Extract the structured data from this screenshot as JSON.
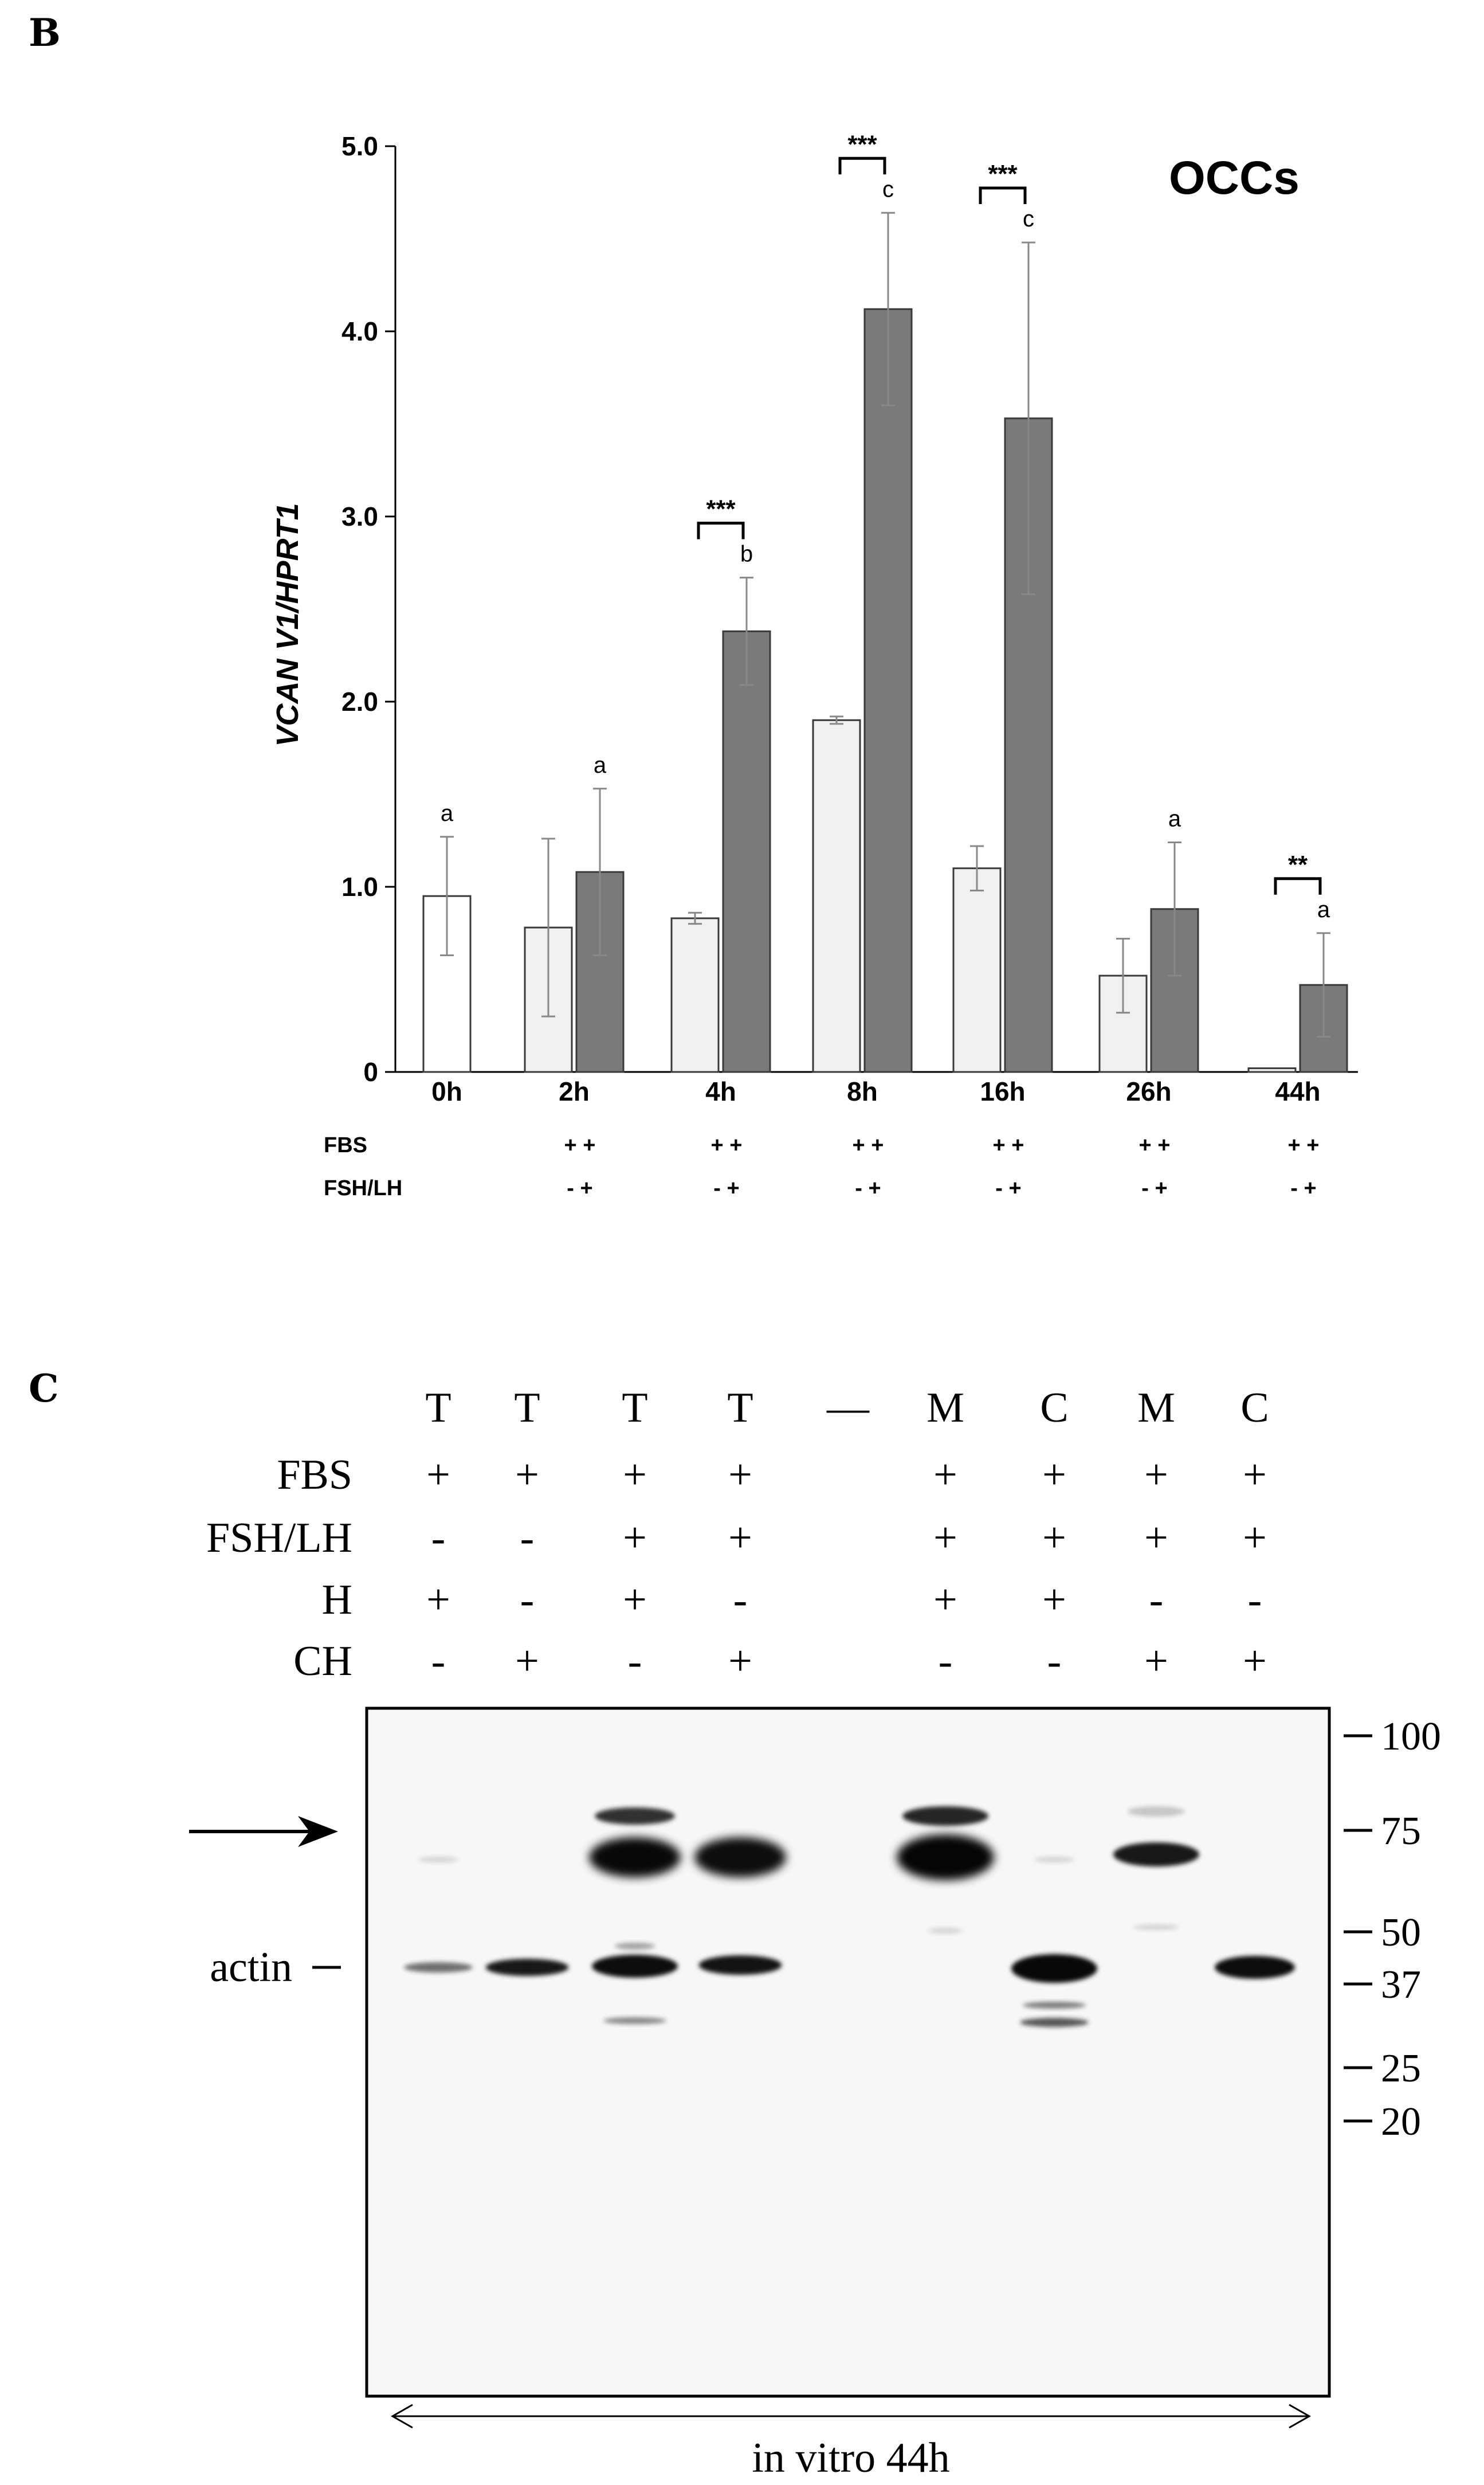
{
  "panel_b": {
    "letter": "B",
    "chart_data": {
      "type": "bar",
      "title": "OCCs",
      "ylabel": "VCAN V1/HPRT1",
      "xlabel": "",
      "ylim": [
        0,
        5.0
      ],
      "yticks": [
        "0",
        "1.0",
        "2.0",
        "3.0",
        "4.0",
        "5.0"
      ],
      "ytick_values": [
        0,
        1,
        2,
        3,
        4,
        5
      ],
      "grid": false,
      "categories": [
        "0h",
        "2h",
        "4h",
        "8h",
        "16h",
        "26h",
        "44h"
      ],
      "series": [
        {
          "values": [
            0.95,
            0.78,
            0.83,
            1.9,
            1.1,
            0.52,
            0.02
          ],
          "errors": [
            0.32,
            0.48,
            0.03,
            0.02,
            0.12,
            0.2,
            0.0
          ],
          "color": "#f0f0f0"
        },
        {
          "values": [
            null,
            1.08,
            2.38,
            4.12,
            3.53,
            0.88,
            0.47
          ],
          "errors": [
            null,
            0.45,
            0.29,
            0.52,
            0.95,
            0.36,
            0.28
          ],
          "color": "#7a7a7a"
        }
      ],
      "first_bar_color": "#ffffff",
      "letters": [
        {
          "category": "0h",
          "series": 0,
          "text": "a"
        },
        {
          "category": "2h",
          "series": 1,
          "text": "a"
        },
        {
          "category": "4h",
          "series": 1,
          "text": "b"
        },
        {
          "category": "8h",
          "series": 1,
          "text": "c"
        },
        {
          "category": "16h",
          "series": 1,
          "text": "c"
        },
        {
          "category": "26h",
          "series": 1,
          "text": "a"
        },
        {
          "category": "44h",
          "series": 1,
          "text": "a"
        }
      ],
      "significance": [
        {
          "category": "4h",
          "stars": "***"
        },
        {
          "category": "8h",
          "stars": "***"
        },
        {
          "category": "16h",
          "stars": "***"
        },
        {
          "category": "44h",
          "stars": "**"
        }
      ],
      "conditions": [
        {
          "label": "FBS",
          "values": [
            "",
            "+ +",
            "+ +",
            "+ +",
            "+ +",
            "+ +",
            "+ +"
          ]
        },
        {
          "label": "FSH/LH",
          "values": [
            "",
            "- +",
            "- +",
            "- +",
            "- +",
            "- +",
            "- +"
          ]
        }
      ]
    }
  },
  "panel_c": {
    "letter": "C",
    "lanes": [
      "T",
      "T",
      "T",
      "T",
      "—",
      "M",
      "C",
      "M",
      "C"
    ],
    "rows": [
      {
        "label": "FBS",
        "values": [
          "+",
          "+",
          "+",
          "+",
          "",
          "+",
          "+",
          "+",
          "+"
        ]
      },
      {
        "label": "FSH/LH",
        "values": [
          "-",
          "-",
          "+",
          "+",
          "",
          "+",
          "+",
          "+",
          "+"
        ]
      },
      {
        "label": "H",
        "values": [
          "+",
          "-",
          "+",
          "-",
          "",
          "+",
          "+",
          "-",
          "-"
        ]
      },
      {
        "label": "CH",
        "values": [
          "-",
          "+",
          "-",
          "+",
          "",
          "-",
          "-",
          "+",
          "+"
        ]
      }
    ],
    "actin_label": "actin",
    "markers": [
      "100",
      "75",
      "50",
      "37",
      "25",
      "20"
    ],
    "marker_kda": [
      100,
      75,
      50,
      37,
      25,
      20
    ],
    "footer": "in vitro 44h"
  }
}
